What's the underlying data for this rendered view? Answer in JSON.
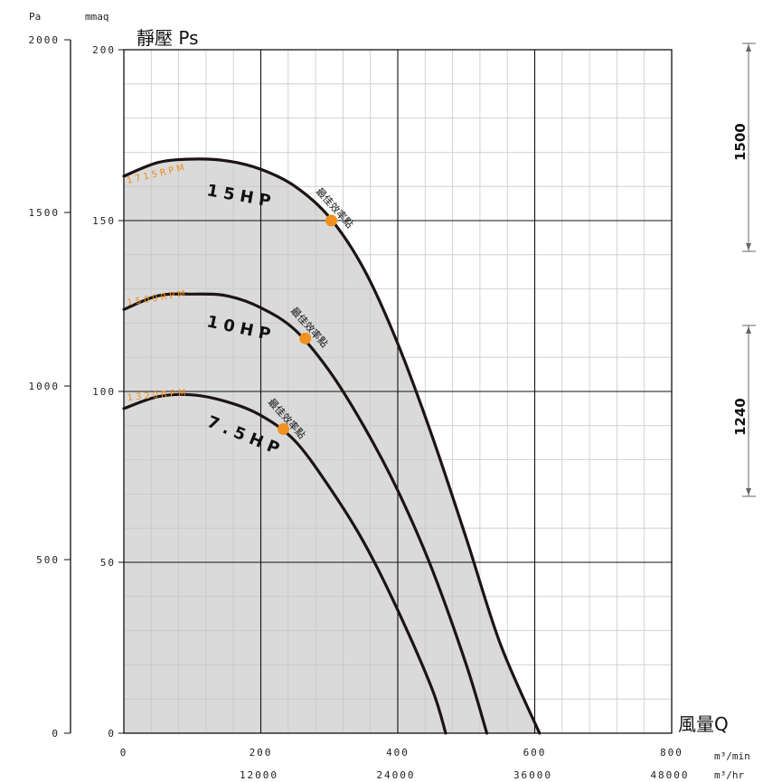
{
  "chart_data": {
    "type": "line",
    "title": "靜壓 Ps",
    "xlabel": "風量Q",
    "ylabel": "靜壓 Ps",
    "y_left_unit": "Pa",
    "y_mmaq_unit": "mmaq",
    "x_unit_min": "m³/min",
    "x_unit_hr": "m³/hr",
    "xlim": [
      0,
      800
    ],
    "ylim": [
      0,
      200
    ],
    "x_ticks_min": [
      "0",
      "200",
      "400",
      "600",
      "800"
    ],
    "x_ticks_hr": [
      "12000",
      "24000",
      "36000",
      "48000"
    ],
    "y_ticks_mmaq": [
      "0",
      "50",
      "100",
      "150",
      "200"
    ],
    "y_ticks_pa": [
      "0",
      "500",
      "1000",
      "1500",
      "2000"
    ],
    "grid": true,
    "best_point_label": "最佳效率點",
    "series": [
      {
        "name": "15HP",
        "rpm": "1715RPM",
        "x": [
          0,
          50,
          100,
          150,
          200,
          250,
          300,
          350,
          400,
          450,
          500,
          550,
          607
        ],
        "y": [
          163,
          167,
          168,
          167.5,
          165,
          160,
          151,
          136,
          114,
          87,
          57,
          26,
          0
        ],
        "best_point": [
          303,
          150
        ]
      },
      {
        "name": "10HP",
        "rpm": "1500RPM",
        "x": [
          0,
          50,
          100,
          150,
          200,
          250,
          300,
          350,
          400,
          450,
          500,
          530
        ],
        "y": [
          124,
          128,
          128.5,
          128,
          124.5,
          118,
          106,
          90,
          71,
          48,
          20,
          0
        ],
        "best_point": [
          265,
          115.5
        ]
      },
      {
        "name": "7.5HP",
        "rpm": "1320RPM",
        "x": [
          0,
          50,
          100,
          150,
          200,
          250,
          300,
          350,
          400,
          450,
          470
        ],
        "y": [
          95,
          98.5,
          99,
          97,
          93,
          85.5,
          72,
          56,
          36,
          13,
          0
        ],
        "best_point": [
          233,
          89
        ]
      }
    ],
    "annotations": [
      {
        "label": "1500"
      },
      {
        "label": "1240"
      }
    ]
  }
}
